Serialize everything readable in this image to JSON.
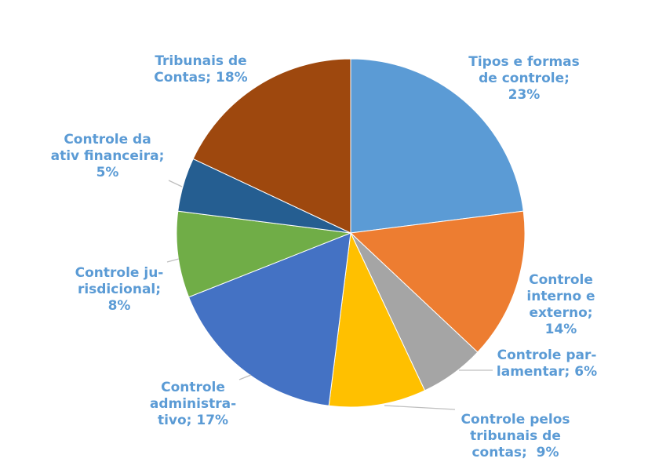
{
  "chart_data": {
    "type": "pie",
    "start": "top",
    "direction": "clockwise",
    "slices": [
      {
        "label_lines": [
          "Tipos e formas",
          "de controle;",
          "23%"
        ],
        "value": 23,
        "color": "#5B9BD5"
      },
      {
        "label_lines": [
          "Controle",
          "interno e",
          "externo;",
          "14%"
        ],
        "value": 14,
        "color": "#ED7D31"
      },
      {
        "label_lines": [
          "Controle par-",
          "lamentar; 6%"
        ],
        "value": 6,
        "color": "#A5A5A5"
      },
      {
        "label_lines": [
          "Controle pelos",
          "tribunais de",
          "contas;  9%"
        ],
        "value": 9,
        "color": "#FFC000"
      },
      {
        "label_lines": [
          "Controle",
          "administra-",
          "tivo; 17%"
        ],
        "value": 17,
        "color": "#4472C4"
      },
      {
        "label_lines": [
          "Controle ju-",
          "risdicional;",
          "8%"
        ],
        "value": 8,
        "color": "#70AD47"
      },
      {
        "label_lines": [
          "Controle da",
          "ativ financeira;",
          "5%"
        ],
        "value": 5,
        "color": "#255E91"
      },
      {
        "label_lines": [
          "Tribunais de",
          "Contas; 18%"
        ],
        "value": 18,
        "color": "#9E480E"
      }
    ],
    "label_color": "#5B9BD5",
    "leader_line_color": "#BFBFBF"
  }
}
